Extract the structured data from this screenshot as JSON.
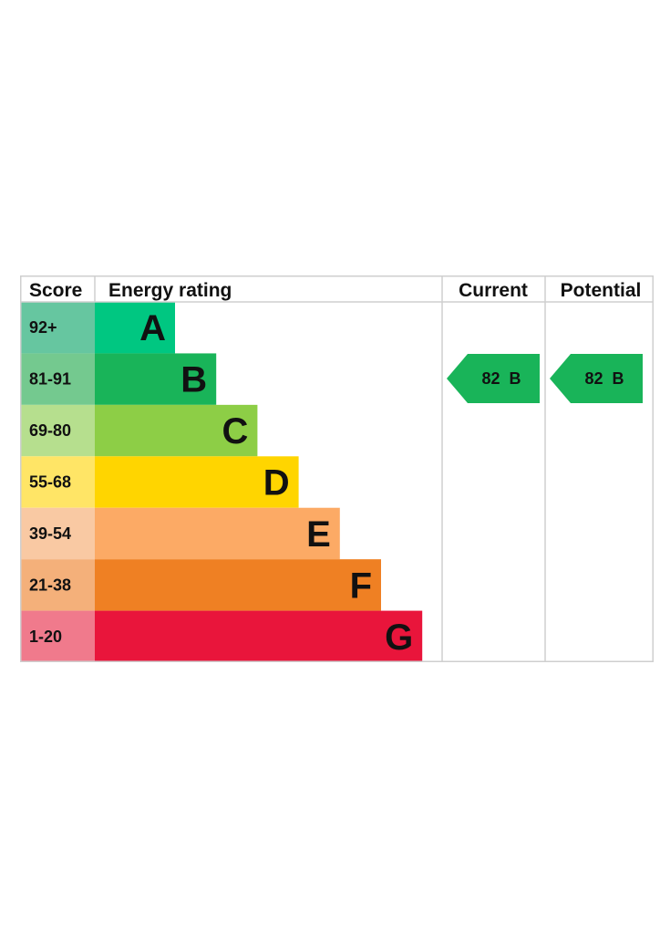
{
  "chart_data": {
    "type": "bar",
    "headers": {
      "score": "Score",
      "energy_rating": "Energy rating",
      "current": "Current",
      "potential": "Potential"
    },
    "bands": [
      {
        "score": "92+",
        "letter": "A",
        "bar_color": "#00c781",
        "score_color": "#66c6a0"
      },
      {
        "score": "81-91",
        "letter": "B",
        "bar_color": "#19b459",
        "score_color": "#74c98f"
      },
      {
        "score": "69-80",
        "letter": "C",
        "bar_color": "#8dce46",
        "score_color": "#b6df8e"
      },
      {
        "score": "55-68",
        "letter": "D",
        "bar_color": "#ffd500",
        "score_color": "#ffe566"
      },
      {
        "score": "39-54",
        "letter": "E",
        "bar_color": "#fcaa65",
        "score_color": "#f9c9a3"
      },
      {
        "score": "21-38",
        "letter": "F",
        "bar_color": "#ef8023",
        "score_color": "#f4b07a"
      },
      {
        "score": "1-20",
        "letter": "G",
        "bar_color": "#e9153b",
        "score_color": "#f07a8c"
      }
    ],
    "current": {
      "value": 82,
      "letter": "B",
      "label": "82  B",
      "color": "#19b459"
    },
    "potential": {
      "value": 82,
      "letter": "B",
      "label": "82  B",
      "color": "#19b459"
    }
  }
}
